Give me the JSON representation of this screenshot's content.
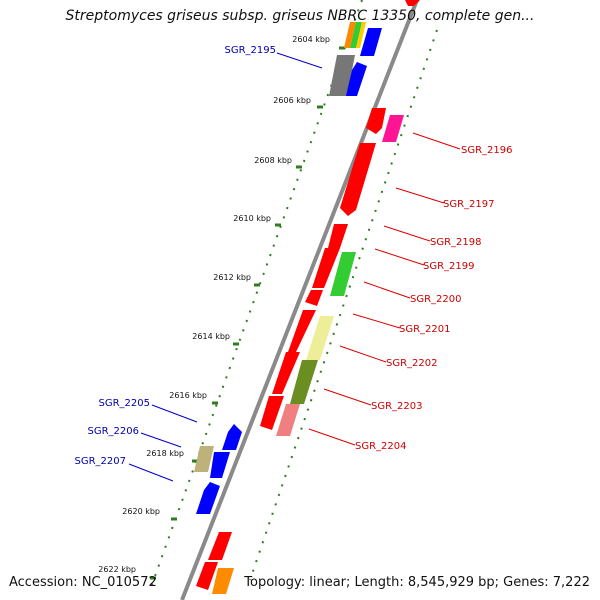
{
  "header": {
    "title": "Streptomyces griseus subsp. griseus NBRC 13350, complete gen..."
  },
  "footer": {
    "accession": "Accession: NC_010572",
    "summary": "Topology: linear; Length: 8,545,929 bp; Genes: 7,222"
  },
  "axis": {
    "ticks": [
      "2604 kbp",
      "2606 kbp",
      "2608 kbp",
      "2610 kbp",
      "2612 kbp",
      "2614 kbp",
      "2616 kbp",
      "2618 kbp",
      "2620 kbp",
      "2622 kbp"
    ]
  },
  "colors": {
    "backbone": "#8a8a8a",
    "forward_gene": "#ff0000",
    "reverse_gene": "#0000ff",
    "tick_dots": "#2f7d1e",
    "forward_label": "#cc0000",
    "reverse_label": "#0000aa"
  },
  "gene_labels": {
    "left": [
      "SGR_2195",
      "SGR_2205",
      "SGR_2206",
      "SGR_2207"
    ],
    "right": [
      "SGR_2196",
      "SGR_2197",
      "SGR_2198",
      "SGR_2199",
      "SGR_2200",
      "SGR_2201",
      "SGR_2202",
      "SGR_2203",
      "SGR_2204"
    ]
  }
}
